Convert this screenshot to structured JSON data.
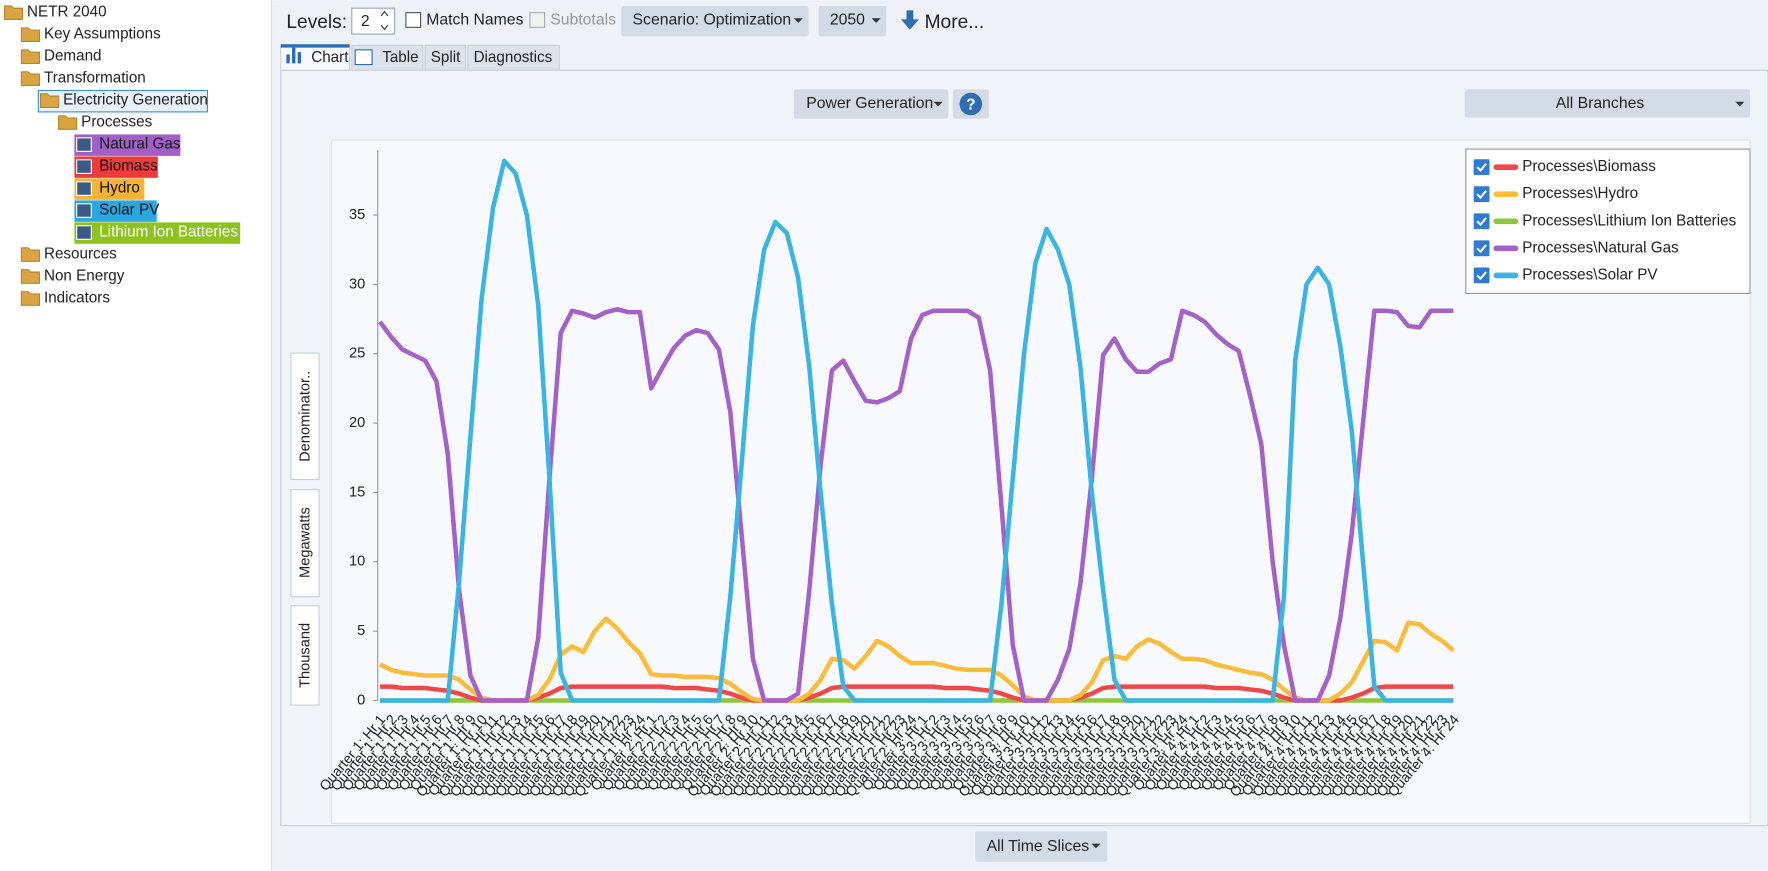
{
  "tree": [
    "NETR 2040",
    "Key Assumptions",
    "Demand",
    "Transformation",
    "Electricity Generation",
    "Processes",
    "Natural Gas",
    "Biomass",
    "Hydro",
    "Solar PV",
    "Lithium Ion Batteries",
    "Resources",
    "Non Energy",
    "Indicators"
  ],
  "toolbar": {
    "levels_label": "Levels:",
    "levels_value": 2,
    "match_names": "Match Names",
    "subtotals": "Subtotals",
    "scenario": "Scenario: Optimization",
    "year": 2050,
    "more": "More..."
  },
  "tabs": [
    "Chart",
    "Table",
    "Split",
    "Diagnostics"
  ],
  "chart_header": {
    "variable": "Power Generation",
    "help": "?",
    "branches": "All Branches"
  },
  "side_buttons": [
    "Denominator..",
    "Megawatts",
    "Thousand"
  ],
  "footer": "All Time Slices",
  "chart_data": {
    "type": "line",
    "categories": [
      "Quarter 1: Hr 1",
      "Quarter 1: Hr 2",
      "Quarter 1: Hr 3",
      "Quarter 1: Hr 4",
      "Quarter 1: Hr 5",
      "Quarter 1: Hr 6",
      "Quarter 1: Hr 7",
      "Quarter 1: Hr 8",
      "Quarter 1: Hr 9",
      "Quarter 1: Hr 10",
      "Quarter 1: Hr 11",
      "Quarter 1: Hr 12",
      "Quarter 1: Hr 13",
      "Quarter 1: Hr 14",
      "Quarter 1: Hr 15",
      "Quarter 1: Hr 16",
      "Quarter 1: Hr 17",
      "Quarter 1: Hr 18",
      "Quarter 1: Hr 19",
      "Quarter 1: Hr 20",
      "Quarter 1: Hr 21",
      "Quarter 1: Hr 22",
      "Quarter 1: Hr 23",
      "Quarter 1: Hr 24",
      "Quarter 2: Hr 1",
      "Quarter 2: Hr 2",
      "Quarter 2: Hr 3",
      "Quarter 2: Hr 4",
      "Quarter 2: Hr 5",
      "Quarter 2: Hr 6",
      "Quarter 2: Hr 7",
      "Quarter 2: Hr 8",
      "Quarter 2: Hr 9",
      "Quarter 2: Hr 10",
      "Quarter 2: Hr 11",
      "Quarter 2: Hr 12",
      "Quarter 2: Hr 13",
      "Quarter 2: Hr 14",
      "Quarter 2: Hr 15",
      "Quarter 2: Hr 16",
      "Quarter 2: Hr 17",
      "Quarter 2: Hr 18",
      "Quarter 2: Hr 19",
      "Quarter 2: Hr 20",
      "Quarter 2: Hr 21",
      "Quarter 2: Hr 22",
      "Quarter 2: Hr 23",
      "Quarter 2: Hr 24",
      "Quarter 3: Hr 1",
      "Quarter 3: Hr 2",
      "Quarter 3: Hr 3",
      "Quarter 3: Hr 4",
      "Quarter 3: Hr 5",
      "Quarter 3: Hr 6",
      "Quarter 3: Hr 7",
      "Quarter 3: Hr 8",
      "Quarter 3: Hr 9",
      "Quarter 3: Hr 10",
      "Quarter 3: Hr 11",
      "Quarter 3: Hr 12",
      "Quarter 3: Hr 13",
      "Quarter 3: Hr 14",
      "Quarter 3: Hr 15",
      "Quarter 3: Hr 16",
      "Quarter 3: Hr 17",
      "Quarter 3: Hr 18",
      "Quarter 3: Hr 19",
      "Quarter 3: Hr 20",
      "Quarter 3: Hr 21",
      "Quarter 3: Hr 22",
      "Quarter 3: Hr 23",
      "Quarter 3: Hr 24",
      "Quarter 4: Hr 1",
      "Quarter 4: Hr 2",
      "Quarter 4: Hr 3",
      "Quarter 4: Hr 4",
      "Quarter 4: Hr 5",
      "Quarter 4: Hr 6",
      "Quarter 4: Hr 7",
      "Quarter 4: Hr 8",
      "Quarter 4: Hr 9",
      "Quarter 4: Hr 10",
      "Quarter 4: Hr 11",
      "Quarter 4: Hr 12",
      "Quarter 4: Hr 13",
      "Quarter 4: Hr 14",
      "Quarter 4: Hr 15",
      "Quarter 4: Hr 16",
      "Quarter 4: Hr 17",
      "Quarter 4: Hr 18",
      "Quarter 4: Hr 19",
      "Quarter 4: Hr 20",
      "Quarter 4: Hr 21",
      "Quarter 4: Hr 22",
      "Quarter 4: Hr 23",
      "Quarter 4: Hr 24"
    ],
    "series": [
      {
        "name": "Processes\\Biomass",
        "color": "#f04848",
        "values": [
          1,
          1,
          0.9,
          0.9,
          0.9,
          0.8,
          0.7,
          0.5,
          0.2,
          0,
          0,
          0,
          0,
          0,
          0.2,
          0.5,
          0.9,
          1,
          1,
          1,
          1,
          1,
          1,
          1,
          1,
          1,
          0.9,
          0.9,
          0.9,
          0.8,
          0.7,
          0.5,
          0.2,
          0,
          0,
          0,
          0,
          0,
          0.2,
          0.5,
          0.9,
          1,
          1,
          1,
          1,
          1,
          1,
          1,
          1,
          1,
          0.9,
          0.9,
          0.9,
          0.8,
          0.7,
          0.5,
          0.2,
          0,
          0,
          0,
          0,
          0,
          0.2,
          0.5,
          0.9,
          1,
          1,
          1,
          1,
          1,
          1,
          1,
          1,
          1,
          0.9,
          0.9,
          0.9,
          0.8,
          0.7,
          0.5,
          0.2,
          0,
          0,
          0,
          0,
          0,
          0.2,
          0.5,
          0.9,
          1,
          1,
          1,
          1,
          1,
          1,
          1
        ]
      },
      {
        "name": "Processes\\Hydro",
        "color": "#fbbc3c",
        "values": [
          2.6,
          2.2,
          2,
          1.9,
          1.8,
          1.8,
          1.8,
          1.5,
          0.8,
          0.2,
          0,
          0,
          0,
          0,
          0.4,
          1.5,
          3.3,
          3.9,
          3.5,
          5,
          5.9,
          5.2,
          4.2,
          3.4,
          1.9,
          1.8,
          1.8,
          1.7,
          1.7,
          1.7,
          1.6,
          1.2,
          0.6,
          0.1,
          0,
          0,
          0,
          0,
          0.5,
          1.5,
          3,
          2.9,
          2.3,
          3.2,
          4.3,
          3.9,
          3.2,
          2.7,
          2.7,
          2.7,
          2.5,
          2.3,
          2.2,
          2.2,
          2.2,
          1.8,
          1.1,
          0.3,
          0,
          0,
          0,
          0,
          0.4,
          1.3,
          2.9,
          3.2,
          3,
          3.9,
          4.4,
          4.1,
          3.5,
          3,
          3,
          2.9,
          2.6,
          2.4,
          2.2,
          2,
          1.9,
          1.5,
          0.8,
          0.2,
          0,
          0,
          0,
          0.5,
          1.3,
          2.8,
          4.3,
          4.2,
          3.6,
          5.6,
          5.5,
          4.8,
          4.3,
          3.6
        ]
      },
      {
        "name": "Processes\\Lithium Ion Batteries",
        "color": "#8dc63f",
        "values": [
          0,
          0,
          0,
          0,
          0,
          0,
          0,
          0,
          0,
          0,
          0,
          0,
          0,
          0,
          0,
          0,
          0,
          0,
          0,
          0,
          0,
          0,
          0,
          0,
          0,
          0,
          0,
          0,
          0,
          0,
          0,
          0,
          0,
          0,
          0,
          0,
          0,
          0,
          0,
          0,
          0,
          0,
          0,
          0,
          0,
          0,
          0,
          0,
          0,
          0,
          0,
          0,
          0,
          0,
          0,
          0,
          0,
          0,
          0,
          0,
          0,
          0,
          0,
          0,
          0,
          0,
          0,
          0,
          0,
          0,
          0,
          0,
          0,
          0,
          0,
          0,
          0,
          0,
          0,
          0,
          0,
          0,
          0,
          0,
          0,
          0,
          0,
          0,
          0,
          0,
          0,
          0,
          0,
          0,
          0,
          0
        ]
      },
      {
        "name": "Processes\\Natural Gas",
        "color": "#a461c8",
        "values": [
          27.3,
          26.2,
          25.3,
          24.9,
          24.5,
          23,
          17.8,
          8,
          1.8,
          0,
          0,
          0,
          0,
          0,
          4.5,
          16,
          26.5,
          28.1,
          27.9,
          27.6,
          28,
          28.2,
          28,
          28,
          22.5,
          24,
          25.4,
          26.3,
          26.7,
          26.5,
          25.3,
          20.8,
          12,
          3,
          0,
          0,
          0,
          0.5,
          8,
          17,
          23.8,
          24.5,
          23,
          21.6,
          21.5,
          21.8,
          22.3,
          26.1,
          27.8,
          28.1,
          28.1,
          28.1,
          28.1,
          27.6,
          23.8,
          14,
          4,
          0,
          0,
          0,
          1.5,
          3.7,
          8.5,
          16,
          24.9,
          26.1,
          24.6,
          23.7,
          23.7,
          24.3,
          24.6,
          28.1,
          27.8,
          27.3,
          26.4,
          25.7,
          25.2,
          22,
          18.5,
          10,
          4,
          0,
          0,
          0,
          1.8,
          6,
          12,
          20,
          28.1,
          28.1,
          28,
          27,
          26.9,
          28.1,
          28.1,
          28.1
        ]
      },
      {
        "name": "Processes\\Solar PV",
        "color": "#3ab4e2",
        "values": [
          0,
          0,
          0,
          0,
          0,
          0,
          0,
          8.5,
          19,
          29,
          35.5,
          38.9,
          38,
          35,
          28.5,
          16,
          2,
          0,
          0,
          0,
          0,
          0,
          0,
          0,
          0,
          0,
          0,
          0,
          0,
          0,
          0,
          7.5,
          17,
          27,
          32.5,
          34.5,
          33.7,
          30.5,
          24,
          15,
          7,
          1,
          0,
          0,
          0,
          0,
          0,
          0,
          0,
          0,
          0,
          0,
          0,
          0,
          0,
          7,
          16,
          25,
          31.5,
          34,
          32.5,
          30,
          24,
          15,
          8,
          1.5,
          0,
          0,
          0,
          0,
          0,
          0,
          0,
          0,
          0,
          0,
          0,
          0,
          0,
          0,
          7.5,
          24.5,
          30,
          31.2,
          30,
          25.5,
          19.5,
          10,
          1,
          0,
          0,
          0,
          0,
          0,
          0,
          0
        ]
      }
    ],
    "ylim": [
      0,
      40
    ],
    "yticks": [
      0,
      5,
      10,
      15,
      20,
      25,
      30,
      35
    ],
    "legend": "top-right"
  }
}
